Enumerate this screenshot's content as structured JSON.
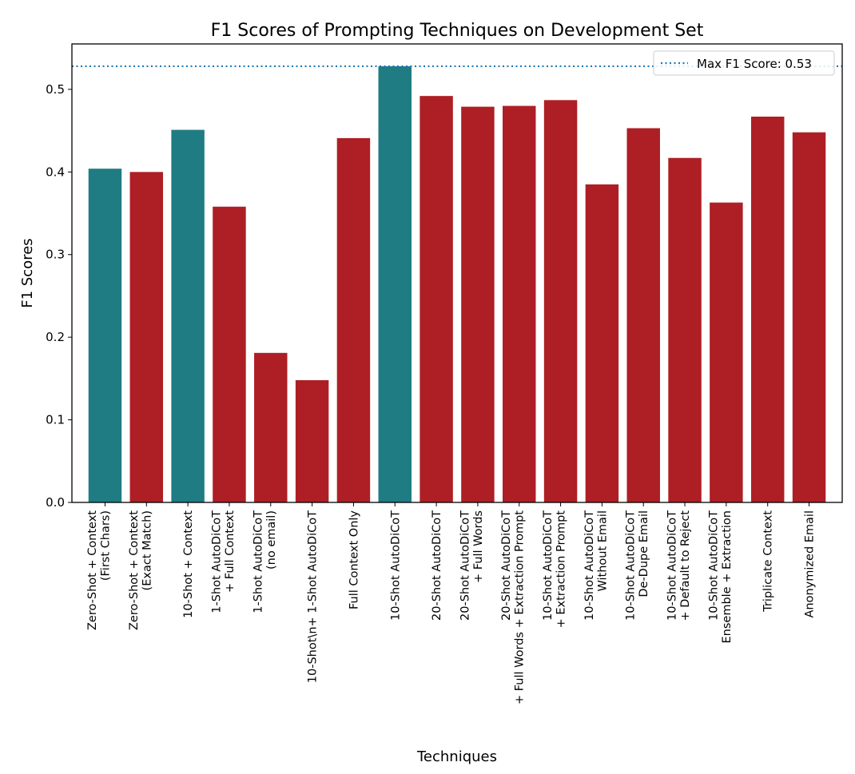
{
  "chart_data": {
    "type": "bar",
    "title": "F1 Scores of Prompting Techniques on Development Set",
    "xlabel": "Techniques",
    "ylabel": "F1 Scores",
    "ylim": [
      0,
      0.555
    ],
    "yticks": [
      "0.0",
      "0.1",
      "0.2",
      "0.3",
      "0.4",
      "0.5"
    ],
    "yticks_values": [
      0,
      0.1,
      0.2,
      0.3,
      0.4,
      0.5
    ],
    "grid": false,
    "legend": {
      "placement": "top-right",
      "label": "Max F1 Score: 0.53"
    },
    "max_line": {
      "value": 0.528,
      "style": "dotted"
    },
    "colors": {
      "highlight": "#1f7c83",
      "default": "#ad1f24",
      "max_line": "#1f77b4"
    },
    "categories": [
      [
        "Zero-Shot + Context",
        "(First Chars)"
      ],
      [
        "Zero-Shot + Context",
        "(Exact Match)"
      ],
      [
        "10-Shot + Context"
      ],
      [
        "1-Shot AutoDiCoT",
        "+ Full Context"
      ],
      [
        "1-Shot AutoDiCoT",
        "(no email)"
      ],
      [
        "10-Shot\\n+ 1-Shot AutoDiCoT"
      ],
      [
        "Full Context Only"
      ],
      [
        "10-Shot AutoDiCoT"
      ],
      [
        "20-Shot AutoDiCoT"
      ],
      [
        "20-Shot AutoDiCoT",
        "+ Full Words"
      ],
      [
        "20-Shot AutoDiCoT",
        "+ Full Words + Extraction Prompt"
      ],
      [
        "10-Shot AutoDiCoT",
        "+ Extraction Prompt"
      ],
      [
        "10-Shot AutoDiCoT",
        "Without Email"
      ],
      [
        "10-Shot AutoDiCoT",
        "De-Dupe Email"
      ],
      [
        "10-Shot AutoDiCoT",
        "+ Default to Reject"
      ],
      [
        "10-Shot AutoDiCoT",
        "Ensemble + Extraction"
      ],
      [
        "Triplicate Context"
      ],
      [
        "Anonymized Email"
      ]
    ],
    "values": [
      0.404,
      0.4,
      0.451,
      0.358,
      0.181,
      0.148,
      0.441,
      0.528,
      0.492,
      0.479,
      0.48,
      0.487,
      0.385,
      0.453,
      0.417,
      0.363,
      0.467,
      0.448
    ],
    "highlighted": [
      true,
      false,
      true,
      false,
      false,
      false,
      false,
      true,
      false,
      false,
      false,
      false,
      false,
      false,
      false,
      false,
      false,
      false
    ]
  }
}
